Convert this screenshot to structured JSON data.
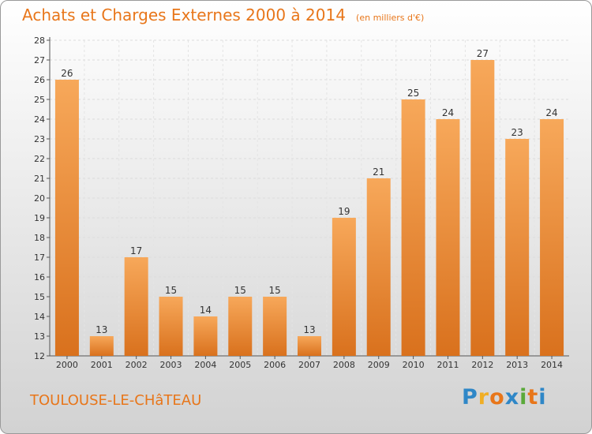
{
  "header": {
    "title": "Achats et Charges Externes 2000 à 2014",
    "unit": "(en milliers d'€)"
  },
  "footer": {
    "commune": "TOULOUSE-LE-CHâTEAU",
    "logo": [
      "P",
      "r",
      "o",
      "x",
      "i",
      "t",
      "i"
    ]
  },
  "colors": {
    "accent": "#e8761a",
    "bar_top": "#f7a85a",
    "bar_bottom": "#d9711d"
  },
  "chart_data": {
    "type": "bar",
    "categories": [
      "2000",
      "2001",
      "2002",
      "2003",
      "2004",
      "2005",
      "2006",
      "2007",
      "2008",
      "2009",
      "2010",
      "2011",
      "2012",
      "2013",
      "2014"
    ],
    "values": [
      26,
      13,
      17,
      15,
      14,
      15,
      15,
      13,
      19,
      21,
      25,
      24,
      27,
      23,
      24
    ],
    "title": "Achats et Charges Externes 2000 à 2014",
    "subtitle": "(en milliers d'€)",
    "xlabel": "",
    "ylabel": "",
    "ylim": [
      12,
      28
    ],
    "yticks": [
      12,
      13,
      14,
      15,
      16,
      17,
      18,
      19,
      20,
      21,
      22,
      23,
      24,
      25,
      26,
      27,
      28
    ],
    "grid": true,
    "data_labels": true
  }
}
